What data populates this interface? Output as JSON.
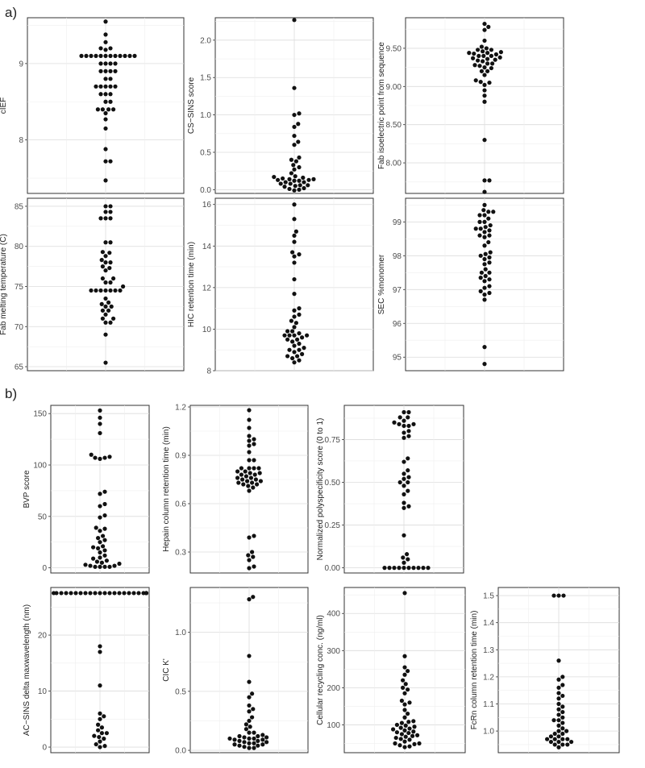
{
  "figure_labels": {
    "a": "a)",
    "b": "b)"
  },
  "chart_data": [
    {
      "type": "scatter",
      "style": "beeswarm",
      "ylabel": "cIEF",
      "ylim": [
        7.3,
        9.6
      ],
      "yticks": [
        8,
        9
      ],
      "tick_labels": [
        "8",
        "9"
      ],
      "values": [
        9.55,
        9.38,
        9.28,
        9.2,
        9.2,
        9.18,
        9.1,
        9.1,
        9.1,
        9.1,
        9.1,
        9.1,
        9.1,
        9.1,
        9.1,
        9.1,
        9.1,
        9.1,
        9.0,
        9.0,
        9.0,
        9.0,
        8.9,
        8.9,
        8.9,
        8.9,
        8.8,
        8.8,
        8.7,
        8.7,
        8.7,
        8.7,
        8.7,
        8.6,
        8.6,
        8.6,
        8.5,
        8.5,
        8.4,
        8.4,
        8.4,
        8.4,
        8.35,
        8.27,
        8.15,
        7.88,
        7.72,
        7.72,
        7.47
      ]
    },
    {
      "type": "scatter",
      "style": "beeswarm",
      "ylabel": "CS−SINS score",
      "ylim": [
        -0.05,
        2.3
      ],
      "yticks": [
        0.0,
        0.5,
        1.0,
        1.5,
        2.0
      ],
      "tick_labels": [
        "0.0",
        "0.5",
        "1.0",
        "1.5",
        "2.0"
      ],
      "values": [
        2.27,
        1.36,
        1.02,
        1.0,
        0.88,
        0.84,
        0.72,
        0.64,
        0.6,
        0.43,
        0.4,
        0.38,
        0.33,
        0.3,
        0.27,
        0.22,
        0.18,
        0.17,
        0.16,
        0.15,
        0.14,
        0.14,
        0.13,
        0.13,
        0.12,
        0.12,
        0.1,
        0.1,
        0.08,
        0.08,
        0.06,
        0.06,
        0.05,
        0.04,
        0.02,
        0.01,
        0.0,
        -0.01
      ]
    },
    {
      "type": "scatter",
      "style": "beeswarm",
      "ylabel": "Fab isoelectric point from sequence",
      "ylim": [
        7.6,
        9.9
      ],
      "yticks": [
        8.0,
        8.5,
        9.0,
        9.5
      ],
      "tick_labels": [
        "8.00",
        "8.50",
        "9.00",
        "9.50"
      ],
      "values": [
        9.82,
        9.78,
        9.74,
        9.6,
        9.52,
        9.5,
        9.48,
        9.48,
        9.46,
        9.45,
        9.44,
        9.44,
        9.43,
        9.42,
        9.4,
        9.4,
        9.4,
        9.38,
        9.37,
        9.36,
        9.35,
        9.34,
        9.33,
        9.3,
        9.3,
        9.28,
        9.27,
        9.25,
        9.24,
        9.2,
        9.2,
        9.15,
        9.08,
        9.06,
        9.05,
        9.02,
        8.95,
        8.88,
        8.8,
        8.3,
        7.77,
        7.77,
        7.62
      ]
    },
    {
      "type": "scatter",
      "style": "beeswarm",
      "ylabel": "Fab melting temperature (C)",
      "ylim": [
        64.5,
        86
      ],
      "yticks": [
        65,
        70,
        75,
        80,
        85
      ],
      "tick_labels": [
        "65",
        "70",
        "75",
        "80",
        "85"
      ],
      "values": [
        85.0,
        85.0,
        84.3,
        84.3,
        83.5,
        83.5,
        83.5,
        80.5,
        80.5,
        79.3,
        79.2,
        78.8,
        78.3,
        78.0,
        78.0,
        77.5,
        77.3,
        77.0,
        76.0,
        76.0,
        75.5,
        75.5,
        75.0,
        74.5,
        74.5,
        74.5,
        74.5,
        74.5,
        74.5,
        74.5,
        73.5,
        73.0,
        72.8,
        72.5,
        72.5,
        72.0,
        72.0,
        71.5,
        71.0,
        71.0,
        70.5,
        70.5,
        69.0,
        65.5
      ]
    },
    {
      "type": "scatter",
      "style": "beeswarm",
      "ylabel": "HIC retention time (min)",
      "ylim": [
        8.0,
        16.3
      ],
      "yticks": [
        8,
        10,
        12,
        14,
        16
      ],
      "tick_labels": [
        "8",
        "10",
        "12",
        "14",
        "16"
      ],
      "values": [
        16.0,
        15.3,
        14.7,
        14.5,
        14.2,
        13.7,
        13.6,
        13.5,
        13.2,
        12.4,
        11.7,
        11.0,
        10.9,
        10.7,
        10.6,
        10.4,
        10.3,
        10.1,
        9.9,
        9.9,
        9.8,
        9.7,
        9.7,
        9.7,
        9.7,
        9.6,
        9.5,
        9.5,
        9.4,
        9.3,
        9.2,
        9.1,
        9.0,
        9.0,
        8.9,
        8.8,
        8.7,
        8.7,
        8.6,
        8.5,
        8.4
      ]
    },
    {
      "type": "scatter",
      "style": "beeswarm",
      "ylabel": "SEC %monomer",
      "ylim": [
        94.6,
        99.7
      ],
      "yticks": [
        95,
        96,
        97,
        98,
        99
      ],
      "tick_labels": [
        "95",
        "96",
        "97",
        "98",
        "99"
      ],
      "values": [
        99.5,
        99.35,
        99.3,
        99.3,
        99.2,
        99.2,
        99.1,
        99.0,
        99.0,
        98.9,
        98.85,
        98.8,
        98.8,
        98.75,
        98.7,
        98.6,
        98.6,
        98.55,
        98.4,
        98.3,
        98.1,
        98.05,
        98.0,
        97.95,
        97.9,
        97.8,
        97.75,
        97.6,
        97.5,
        97.5,
        97.4,
        97.35,
        97.3,
        97.25,
        97.1,
        97.05,
        96.95,
        96.9,
        96.85,
        96.7,
        95.3,
        94.8
      ]
    },
    {
      "type": "scatter",
      "style": "beeswarm",
      "ylabel": "BVP score",
      "ylim": [
        -5,
        158
      ],
      "yticks": [
        0,
        50,
        100,
        150
      ],
      "tick_labels": [
        "0",
        "50",
        "100",
        "150"
      ],
      "values": [
        153,
        146,
        140,
        131,
        110,
        108,
        107,
        107,
        106,
        74,
        72,
        62,
        60,
        51,
        49,
        39,
        38,
        36,
        31,
        29,
        27,
        25,
        21,
        20,
        19,
        17,
        15,
        12,
        10,
        9,
        7,
        6,
        5,
        4,
        3,
        2,
        2,
        1,
        1,
        1,
        1
      ]
    },
    {
      "type": "scatter",
      "style": "beeswarm",
      "ylabel": "Hepain column retention time (min)",
      "ylim": [
        0.17,
        1.21
      ],
      "yticks": [
        0.3,
        0.6,
        0.9,
        1.2
      ],
      "tick_labels": [
        "0.3",
        "0.6",
        "0.9",
        "1.2"
      ],
      "values": [
        1.18,
        1.12,
        1.07,
        1.02,
        1.0,
        0.99,
        0.97,
        0.96,
        0.92,
        0.87,
        0.87,
        0.82,
        0.82,
        0.82,
        0.82,
        0.8,
        0.8,
        0.79,
        0.79,
        0.78,
        0.78,
        0.77,
        0.76,
        0.76,
        0.75,
        0.75,
        0.74,
        0.74,
        0.73,
        0.73,
        0.72,
        0.72,
        0.71,
        0.7,
        0.68,
        0.4,
        0.39,
        0.3,
        0.28,
        0.27,
        0.25,
        0.21,
        0.2
      ]
    },
    {
      "type": "scatter",
      "style": "beeswarm",
      "ylabel": "Normalized polyspecificity score (0 to 1)",
      "ylim": [
        -0.03,
        0.95
      ],
      "yticks": [
        0.0,
        0.25,
        0.5,
        0.75
      ],
      "tick_labels": [
        "0.00",
        "0.25",
        "0.50",
        "0.75"
      ],
      "values": [
        0.91,
        0.91,
        0.88,
        0.88,
        0.86,
        0.85,
        0.84,
        0.84,
        0.83,
        0.83,
        0.8,
        0.79,
        0.77,
        0.76,
        0.64,
        0.62,
        0.57,
        0.55,
        0.53,
        0.52,
        0.5,
        0.5,
        0.48,
        0.45,
        0.43,
        0.38,
        0.36,
        0.35,
        0.19,
        0.08,
        0.06,
        0.05,
        0.03,
        0.0,
        0.0,
        0.0,
        0.0,
        0.0,
        0.0,
        0.0,
        0.0,
        0.0,
        0.0
      ]
    },
    {
      "type": "scatter",
      "style": "beeswarm",
      "ylabel": "AC−SINS delta maxwavelength (nm)",
      "ylim": [
        -1,
        28.5
      ],
      "yticks": [
        0,
        10,
        20
      ],
      "tick_labels": [
        "0",
        "10",
        "20"
      ],
      "values": [
        27.5,
        27.5,
        27.5,
        27.5,
        27.5,
        27.5,
        27.5,
        27.5,
        27.5,
        27.5,
        27.5,
        27.5,
        27.5,
        27.5,
        27.5,
        27.5,
        27.5,
        27.5,
        27.5,
        27.5,
        27.5,
        27.5,
        27.5,
        27.5,
        27.5,
        18.0,
        17.0,
        11.0,
        6.0,
        5.5,
        5.0,
        4.0,
        3.5,
        3.0,
        2.5,
        2.5,
        2.0,
        1.8,
        1.5,
        1.0,
        0.5,
        0.2,
        0.0
      ]
    },
    {
      "type": "scatter",
      "style": "beeswarm",
      "ylabel": "CIC K'",
      "ylim": [
        -0.02,
        1.38
      ],
      "yticks": [
        0.0,
        0.5,
        1.0
      ],
      "tick_labels": [
        "0.0",
        "0.5",
        "1.0"
      ],
      "values": [
        1.3,
        1.28,
        0.8,
        0.58,
        0.48,
        0.45,
        0.38,
        0.35,
        0.33,
        0.28,
        0.25,
        0.22,
        0.2,
        0.18,
        0.15,
        0.15,
        0.13,
        0.12,
        0.12,
        0.11,
        0.11,
        0.1,
        0.1,
        0.1,
        0.09,
        0.09,
        0.08,
        0.08,
        0.07,
        0.07,
        0.06,
        0.06,
        0.05,
        0.05,
        0.04,
        0.04,
        0.03,
        0.02,
        0.02
      ]
    },
    {
      "type": "scatter",
      "style": "beeswarm",
      "ylabel": "Cellular recycling conc. (ng/ml)",
      "ylim": [
        25,
        470
      ],
      "yticks": [
        100,
        200,
        300,
        400
      ],
      "tick_labels": [
        "100",
        "200",
        "300",
        "400"
      ],
      "values": [
        455,
        285,
        255,
        245,
        235,
        220,
        210,
        200,
        195,
        185,
        165,
        160,
        155,
        140,
        130,
        120,
        110,
        108,
        105,
        100,
        98,
        95,
        92,
        90,
        88,
        85,
        82,
        80,
        78,
        75,
        72,
        70,
        68,
        65,
        62,
        60,
        55,
        50,
        50,
        48,
        45,
        42,
        40
      ]
    },
    {
      "type": "scatter",
      "style": "beeswarm",
      "ylabel": "FcRn column retention time (min)",
      "ylim": [
        0.92,
        1.53
      ],
      "yticks": [
        1.0,
        1.1,
        1.2,
        1.3,
        1.4,
        1.5
      ],
      "tick_labels": [
        "1.0",
        "1.1",
        "1.2",
        "1.3",
        "1.4",
        "1.5"
      ],
      "values": [
        1.5,
        1.5,
        1.5,
        1.26,
        1.2,
        1.19,
        1.17,
        1.16,
        1.14,
        1.13,
        1.12,
        1.1,
        1.09,
        1.08,
        1.07,
        1.06,
        1.05,
        1.04,
        1.04,
        1.03,
        1.02,
        1.01,
        1.0,
        1.0,
        0.99,
        0.99,
        0.98,
        0.98,
        0.97,
        0.97,
        0.97,
        0.97,
        0.96,
        0.96,
        0.96,
        0.95,
        0.95,
        0.95,
        0.94
      ]
    }
  ]
}
